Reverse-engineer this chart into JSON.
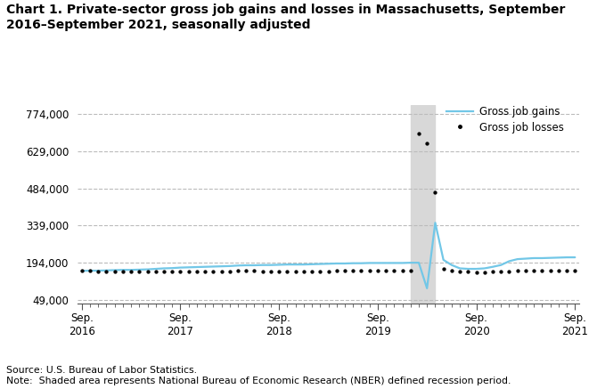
{
  "title_line1": "Chart 1. Private-sector gross job gains and losses in Massachusetts, September",
  "title_line2": "2016–September 2021, seasonally adjusted",
  "title_fontsize": 10,
  "source_text": "Source: U.S. Bureau of Labor Statistics.\nNote:  Shaded area represents National Bureau of Economic Research (NBER) defined recession period.",
  "yticks": [
    49000,
    194000,
    339000,
    484000,
    629000,
    774000
  ],
  "ytick_labels": [
    "49,000",
    "194,000",
    "339,000",
    "484,000",
    "629,000",
    "774,000"
  ],
  "ylim": [
    35000,
    810000
  ],
  "legend_gains": "Gross job gains",
  "legend_losses": "Gross job losses",
  "gains_color": "#72c7e7",
  "losses_color": "#000000",
  "shade_start": 40,
  "shade_end": 43,
  "recession_color": "#d8d8d8",
  "grid_color": "#bbbbbb",
  "background_color": "#ffffff",
  "gross_job_gains": [
    162000,
    163000,
    163000,
    164000,
    165000,
    166000,
    166000,
    167000,
    168000,
    170000,
    172000,
    173000,
    175000,
    176000,
    177000,
    178000,
    179000,
    180000,
    181000,
    183000,
    184000,
    184000,
    185000,
    185000,
    186000,
    187000,
    187000,
    187000,
    188000,
    189000,
    190000,
    191000,
    191000,
    192000,
    192000,
    193000,
    193000,
    193000,
    193000,
    193000,
    194000,
    194000,
    94000,
    350000,
    205000,
    185000,
    172000,
    170000,
    170000,
    172000,
    178000,
    185000,
    200000,
    208000,
    210000,
    212000,
    212000,
    213000,
    214000,
    215000,
    215000
  ],
  "gross_job_losses": [
    162000,
    162000,
    161000,
    161000,
    160000,
    160000,
    160000,
    160000,
    160000,
    160000,
    160000,
    160000,
    160000,
    160000,
    160000,
    160000,
    160000,
    161000,
    161000,
    162000,
    163000,
    162000,
    161000,
    161000,
    160000,
    160000,
    160000,
    160000,
    160000,
    161000,
    161000,
    162000,
    162000,
    162000,
    162000,
    163000,
    163000,
    163000,
    163000,
    163000,
    164000,
    700000,
    660000,
    470000,
    170000,
    162000,
    160000,
    158000,
    157000,
    157000,
    158000,
    159000,
    160000,
    162000,
    163000,
    163000,
    163000,
    163000,
    163000,
    163000,
    163000
  ],
  "n_points": 61,
  "xtick_positions": [
    0,
    12,
    24,
    36,
    48,
    60
  ],
  "xtick_labels": [
    "Sep.\n2016",
    "Sep.\n2017",
    "Sep.\n2018",
    "Sep.\n2019",
    "Sep.\n2020",
    "Sep.\n2021"
  ]
}
